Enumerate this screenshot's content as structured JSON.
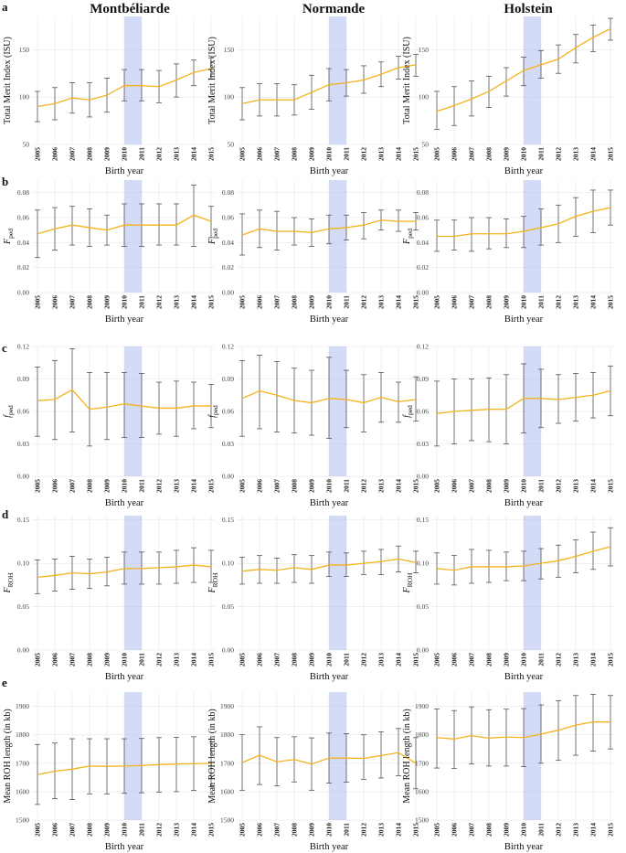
{
  "columns": [
    "Montbéliarde",
    "Normande",
    "Holstein"
  ],
  "x_axis": {
    "years": [
      "2005",
      "2006",
      "2007",
      "2008",
      "2009",
      "2010",
      "2011",
      "2012",
      "2013",
      "2014",
      "2015"
    ],
    "label": "Birth year"
  },
  "colors": {
    "line": "#f5b21a",
    "errorbar": "#555555",
    "highlight": "#aab7ee",
    "grid": "#e6e6e6"
  },
  "highlight_years": [
    "2010",
    "2011"
  ],
  "chart_data": [
    {
      "row_label": "a",
      "type": "line",
      "ylabel": "Total Merit Index (ISU)",
      "ylim": [
        50,
        185
      ],
      "yticks": [
        50,
        100,
        150
      ],
      "panels": [
        {
          "breed": "Montbéliarde",
          "mean": [
            90,
            93,
            99,
            97,
            102,
            112,
            112,
            111,
            118,
            126,
            130
          ],
          "lower": [
            74,
            76,
            83,
            79,
            84,
            96,
            96,
            94,
            100,
            112,
            119
          ],
          "upper": [
            106,
            110,
            115,
            115,
            120,
            129,
            129,
            128,
            135,
            139,
            141
          ]
        },
        {
          "breed": "Normande",
          "mean": [
            93,
            97,
            97,
            97,
            105,
            113,
            115,
            118,
            124,
            131,
            134
          ],
          "lower": [
            76,
            80,
            80,
            81,
            87,
            96,
            101,
            104,
            111,
            119,
            122
          ],
          "upper": [
            110,
            114,
            114,
            113,
            123,
            130,
            129,
            133,
            137,
            143,
            145
          ]
        },
        {
          "breed": "Holstein",
          "mean": [
            85,
            91,
            98,
            106,
            117,
            128,
            134,
            140,
            152,
            163,
            172
          ],
          "lower": [
            66,
            70,
            80,
            89,
            101,
            112,
            120,
            125,
            136,
            148,
            160
          ],
          "upper": [
            106,
            111,
            117,
            122,
            131,
            142,
            149,
            155,
            166,
            176,
            183
          ]
        }
      ]
    },
    {
      "row_label": "b",
      "type": "line",
      "ylabel": "F_ped",
      "ylim": [
        0,
        0.09
      ],
      "yticks": [
        0,
        0.02,
        0.04,
        0.06,
        0.08
      ],
      "panels": [
        {
          "breed": "Montbéliarde",
          "mean": [
            0.047,
            0.051,
            0.054,
            0.052,
            0.05,
            0.054,
            0.054,
            0.054,
            0.054,
            0.062,
            0.057
          ],
          "lower": [
            0.028,
            0.034,
            0.038,
            0.037,
            0.038,
            0.037,
            0.037,
            0.038,
            0.038,
            0.037,
            0.044
          ],
          "upper": [
            0.066,
            0.068,
            0.069,
            0.067,
            0.062,
            0.071,
            0.071,
            0.071,
            0.071,
            0.086,
            0.069
          ]
        },
        {
          "breed": "Normande",
          "mean": [
            0.046,
            0.051,
            0.049,
            0.049,
            0.048,
            0.051,
            0.052,
            0.054,
            0.058,
            0.057,
            0.057
          ],
          "lower": [
            0.03,
            0.036,
            0.034,
            0.038,
            0.037,
            0.039,
            0.042,
            0.043,
            0.05,
            0.049,
            0.05
          ],
          "upper": [
            0.063,
            0.066,
            0.065,
            0.06,
            0.059,
            0.062,
            0.062,
            0.064,
            0.066,
            0.066,
            0.064
          ]
        },
        {
          "breed": "Holstein",
          "mean": [
            0.045,
            0.045,
            0.047,
            0.047,
            0.047,
            0.049,
            0.052,
            0.055,
            0.061,
            0.065,
            0.068
          ],
          "lower": [
            0.033,
            0.034,
            0.033,
            0.035,
            0.036,
            0.036,
            0.038,
            0.04,
            0.045,
            0.048,
            0.054
          ],
          "upper": [
            0.058,
            0.058,
            0.06,
            0.06,
            0.059,
            0.061,
            0.067,
            0.07,
            0.076,
            0.082,
            0.082
          ]
        }
      ]
    },
    {
      "row_label": "c",
      "type": "line",
      "ylabel": "f_ped",
      "ylim": [
        0,
        0.12
      ],
      "yticks": [
        0,
        0.03,
        0.06,
        0.09,
        0.12
      ],
      "panels": [
        {
          "breed": "Montbéliarde",
          "mean": [
            0.07,
            0.071,
            0.08,
            0.062,
            0.064,
            0.067,
            0.065,
            0.063,
            0.063,
            0.065,
            0.065
          ],
          "lower": [
            0.037,
            0.034,
            0.041,
            0.028,
            0.034,
            0.036,
            0.036,
            0.039,
            0.037,
            0.044,
            0.045
          ],
          "upper": [
            0.101,
            0.107,
            0.118,
            0.096,
            0.096,
            0.096,
            0.095,
            0.087,
            0.088,
            0.087,
            0.085
          ]
        },
        {
          "breed": "Normande",
          "mean": [
            0.072,
            0.079,
            0.075,
            0.07,
            0.068,
            0.072,
            0.071,
            0.068,
            0.073,
            0.069,
            0.071
          ],
          "lower": [
            0.037,
            0.044,
            0.041,
            0.04,
            0.038,
            0.035,
            0.045,
            0.041,
            0.05,
            0.05,
            0.051
          ],
          "upper": [
            0.107,
            0.112,
            0.106,
            0.1,
            0.098,
            0.11,
            0.098,
            0.094,
            0.096,
            0.087,
            0.092
          ]
        },
        {
          "breed": "Holstein",
          "mean": [
            0.058,
            0.06,
            0.061,
            0.062,
            0.062,
            0.072,
            0.072,
            0.071,
            0.073,
            0.075,
            0.079
          ],
          "lower": [
            0.028,
            0.03,
            0.033,
            0.032,
            0.03,
            0.04,
            0.045,
            0.049,
            0.051,
            0.054,
            0.056
          ],
          "upper": [
            0.088,
            0.09,
            0.09,
            0.091,
            0.094,
            0.104,
            0.099,
            0.094,
            0.095,
            0.096,
            0.102
          ]
        }
      ]
    },
    {
      "row_label": "d",
      "type": "line",
      "ylabel": "F_ROH",
      "ylim": [
        0,
        0.155
      ],
      "yticks": [
        0,
        0.05,
        0.1,
        0.15
      ],
      "panels": [
        {
          "breed": "Montbéliarde",
          "mean": [
            0.084,
            0.086,
            0.089,
            0.088,
            0.09,
            0.094,
            0.094,
            0.095,
            0.096,
            0.098,
            0.096
          ],
          "lower": [
            0.065,
            0.068,
            0.07,
            0.071,
            0.074,
            0.076,
            0.076,
            0.076,
            0.077,
            0.078,
            0.078
          ],
          "upper": [
            0.104,
            0.105,
            0.108,
            0.105,
            0.107,
            0.113,
            0.113,
            0.113,
            0.115,
            0.118,
            0.115
          ]
        },
        {
          "breed": "Normande",
          "mean": [
            0.091,
            0.093,
            0.092,
            0.095,
            0.093,
            0.098,
            0.098,
            0.1,
            0.102,
            0.105,
            0.101
          ],
          "lower": [
            0.076,
            0.077,
            0.077,
            0.078,
            0.077,
            0.085,
            0.085,
            0.087,
            0.087,
            0.09,
            0.089
          ],
          "upper": [
            0.107,
            0.109,
            0.106,
            0.11,
            0.109,
            0.113,
            0.112,
            0.114,
            0.116,
            0.12,
            0.114
          ]
        },
        {
          "breed": "Holstein",
          "mean": [
            0.094,
            0.092,
            0.096,
            0.096,
            0.096,
            0.097,
            0.1,
            0.103,
            0.108,
            0.114,
            0.119
          ],
          "lower": [
            0.076,
            0.075,
            0.077,
            0.078,
            0.08,
            0.08,
            0.082,
            0.084,
            0.089,
            0.093,
            0.097
          ],
          "upper": [
            0.112,
            0.109,
            0.116,
            0.115,
            0.113,
            0.114,
            0.117,
            0.121,
            0.127,
            0.136,
            0.141
          ]
        }
      ]
    },
    {
      "row_label": "e",
      "type": "line",
      "ylabel": "Mean ROH length (in kb)",
      "ylim": [
        1500,
        1950
      ],
      "yticks": [
        1500,
        1600,
        1700,
        1800,
        1900
      ],
      "panels": [
        {
          "breed": "Montbéliarde",
          "mean": [
            1660,
            1672,
            1679,
            1690,
            1689,
            1690,
            1692,
            1695,
            1697,
            1698,
            1700
          ],
          "lower": [
            1555,
            1575,
            1572,
            1592,
            1592,
            1594,
            1596,
            1598,
            1600,
            1604,
            1617
          ],
          "upper": [
            1766,
            1771,
            1786,
            1786,
            1786,
            1786,
            1787,
            1790,
            1791,
            1793,
            1785
          ]
        },
        {
          "breed": "Normande",
          "mean": [
            1702,
            1728,
            1705,
            1713,
            1697,
            1718,
            1718,
            1717,
            1727,
            1737,
            1700
          ],
          "lower": [
            1605,
            1625,
            1620,
            1634,
            1605,
            1630,
            1633,
            1643,
            1648,
            1656,
            1610
          ],
          "upper": [
            1800,
            1828,
            1790,
            1793,
            1789,
            1806,
            1804,
            1800,
            1810,
            1822,
            1790
          ]
        },
        {
          "breed": "Holstein",
          "mean": [
            1790,
            1785,
            1797,
            1788,
            1792,
            1790,
            1802,
            1816,
            1834,
            1845,
            1845
          ],
          "lower": [
            1683,
            1682,
            1697,
            1690,
            1690,
            1688,
            1700,
            1710,
            1728,
            1743,
            1750
          ],
          "upper": [
            1891,
            1885,
            1898,
            1888,
            1890,
            1892,
            1905,
            1920,
            1938,
            1942,
            1938
          ]
        }
      ]
    }
  ]
}
